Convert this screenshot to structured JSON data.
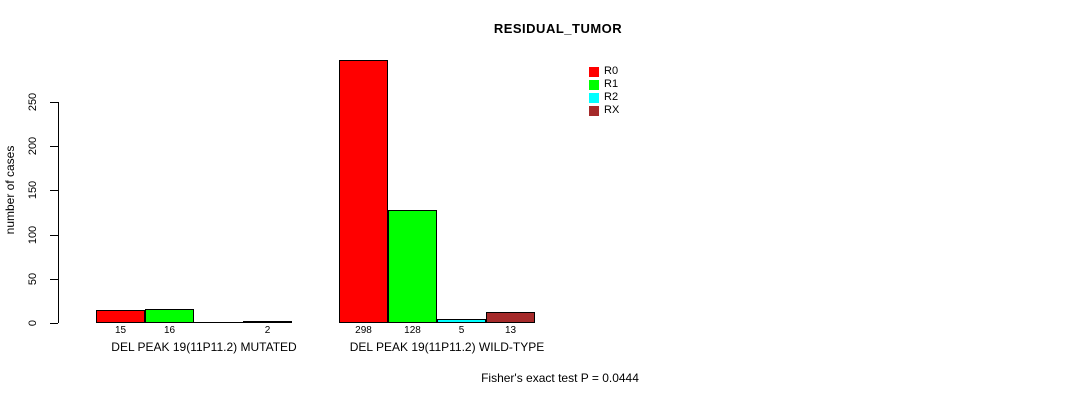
{
  "chart_data": {
    "type": "bar",
    "title": "RESIDUAL_TUMOR",
    "ylabel": "number of cases",
    "xlabel": "",
    "yticks": [
      0,
      50,
      100,
      150,
      200,
      250
    ],
    "ylim": [
      0,
      300
    ],
    "grid": false,
    "legend_position": "top-right",
    "series": [
      {
        "name": "R0",
        "color": "#FF0000"
      },
      {
        "name": "R1",
        "color": "#00FF00"
      },
      {
        "name": "R2",
        "color": "#00FFFF"
      },
      {
        "name": "RX",
        "color": "#A52A2A"
      }
    ],
    "categories": [
      "DEL PEAK 19(11P11.2) MUTATED",
      "DEL PEAK 19(11P11.2) WILD-TYPE"
    ],
    "groups": [
      {
        "label": "DEL PEAK 19(11P11.2) MUTATED",
        "values": [
          15,
          16,
          0,
          2
        ],
        "bar_labels": [
          "15",
          "16",
          "",
          "2"
        ]
      },
      {
        "label": "DEL PEAK 19(11P11.2) WILD-TYPE",
        "values": [
          298,
          128,
          5,
          13
        ],
        "bar_labels": [
          "298",
          "128",
          "5",
          "13"
        ]
      }
    ],
    "footnote": "Fisher's exact test P = 0.0444",
    "bar_border_color": "#000000",
    "text_color": "#000000",
    "background_color": "#FFFFFF"
  }
}
